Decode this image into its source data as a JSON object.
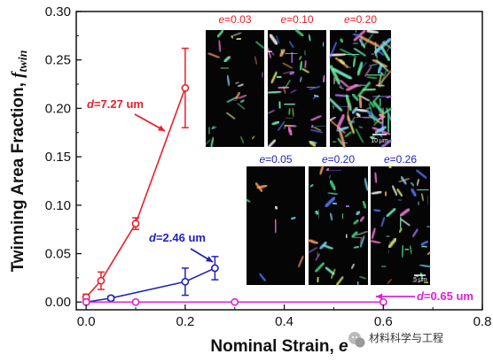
{
  "chart_data": {
    "type": "line",
    "xlabel": "Nominal Strain, ",
    "xlabel_var": "e",
    "ylabel": "Twinning Area Fraction, ",
    "ylabel_var": "f",
    "ylabel_sub": "twin",
    "xlim": [
      -0.02,
      0.8
    ],
    "ylim": [
      -0.008,
      0.3
    ],
    "xticks": [
      "0.0",
      "0.2",
      "0.4",
      "0.6",
      "0.8"
    ],
    "yticks": [
      "0.00",
      "0.05",
      "0.10",
      "0.15",
      "0.20",
      "0.25",
      "0.30"
    ],
    "series": [
      {
        "name": "d=7.27 um",
        "color": "#e8202a",
        "x": [
          0.0,
          0.03,
          0.1,
          0.2
        ],
        "y": [
          0.005,
          0.022,
          0.081,
          0.221
        ],
        "err": [
          0.003,
          0.009,
          0.006,
          0.041
        ]
      },
      {
        "name": "d=2.46 um",
        "color": "#1f23b8",
        "x": [
          0.0,
          0.05,
          0.2,
          0.26
        ],
        "y": [
          0.0,
          0.004,
          0.021,
          0.035
        ],
        "err": [
          0.001,
          0.002,
          0.014,
          0.012
        ]
      },
      {
        "name": "d=0.65 um",
        "color": "#e020d8",
        "x": [
          0.0,
          0.1,
          0.3,
          0.6
        ],
        "y": [
          0.0,
          0.0,
          0.0,
          0.0
        ],
        "err": [
          0,
          0,
          0,
          0
        ]
      }
    ],
    "annotations": [
      {
        "label_var": "d",
        "label_value": "=7.27 um",
        "color": "#e8202a"
      },
      {
        "label_var": "d",
        "label_value": "=2.46 um",
        "color": "#1f23b8"
      },
      {
        "label_var": "d",
        "label_value": "=0.65 um",
        "color": "#e020d8"
      }
    ],
    "insets": {
      "top_row": {
        "color": "#e8202a",
        "labels": [
          "e=0.03",
          "e=0.10",
          "e=0.20"
        ],
        "label_var": "e",
        "label_values": [
          "=0.03",
          "=0.10",
          "=0.20"
        ],
        "scale_bar": "10 μm"
      },
      "bottom_row": {
        "color": "#1f23b8",
        "labels": [
          "e=0.05",
          "e=0.20",
          "e=0.26"
        ],
        "label_var": "e",
        "label_values": [
          "=0.05",
          "=0.20",
          "=0.26"
        ],
        "scale_bar": "5 μm"
      }
    },
    "grid": false
  },
  "watermark": {
    "text": "材料科学与工程",
    "icon": "wechat-icon"
  }
}
